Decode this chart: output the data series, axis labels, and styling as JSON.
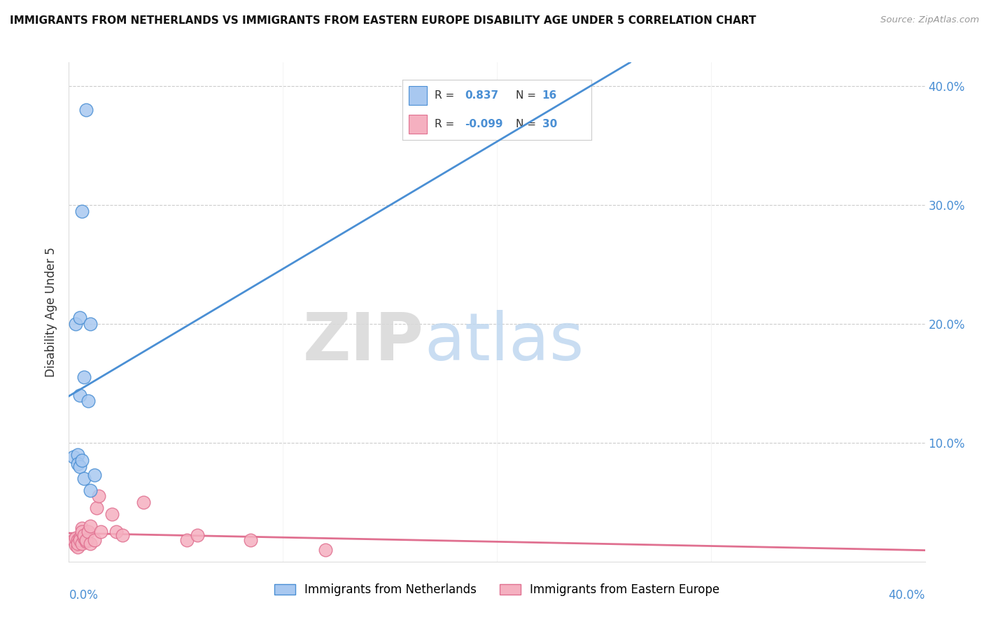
{
  "title": "IMMIGRANTS FROM NETHERLANDS VS IMMIGRANTS FROM EASTERN EUROPE DISABILITY AGE UNDER 5 CORRELATION CHART",
  "source": "Source: ZipAtlas.com",
  "ylabel": "Disability Age Under 5",
  "ytick_vals": [
    0.0,
    0.1,
    0.2,
    0.3,
    0.4
  ],
  "xlim": [
    0.0,
    0.4
  ],
  "ylim": [
    0.0,
    0.42
  ],
  "blue_R": 0.837,
  "blue_N": 16,
  "pink_R": -0.099,
  "pink_N": 30,
  "blue_color": "#a8c8f0",
  "pink_color": "#f5b0c0",
  "blue_line_color": "#4a8fd4",
  "pink_line_color": "#e07090",
  "blue_points_x": [
    0.002,
    0.003,
    0.004,
    0.004,
    0.005,
    0.005,
    0.005,
    0.006,
    0.006,
    0.007,
    0.007,
    0.008,
    0.009,
    0.01,
    0.01,
    0.012
  ],
  "blue_points_y": [
    0.088,
    0.2,
    0.09,
    0.082,
    0.205,
    0.14,
    0.08,
    0.295,
    0.085,
    0.155,
    0.07,
    0.38,
    0.135,
    0.2,
    0.06,
    0.073
  ],
  "pink_points_x": [
    0.002,
    0.003,
    0.003,
    0.004,
    0.004,
    0.004,
    0.005,
    0.005,
    0.006,
    0.006,
    0.006,
    0.007,
    0.007,
    0.008,
    0.008,
    0.009,
    0.01,
    0.01,
    0.012,
    0.013,
    0.014,
    0.015,
    0.02,
    0.022,
    0.025,
    0.035,
    0.055,
    0.06,
    0.085,
    0.12
  ],
  "pink_points_y": [
    0.018,
    0.014,
    0.02,
    0.012,
    0.018,
    0.015,
    0.02,
    0.018,
    0.028,
    0.015,
    0.025,
    0.02,
    0.022,
    0.017,
    0.018,
    0.025,
    0.015,
    0.03,
    0.018,
    0.045,
    0.055,
    0.025,
    0.04,
    0.025,
    0.022,
    0.05,
    0.018,
    0.022,
    0.018,
    0.01
  ]
}
